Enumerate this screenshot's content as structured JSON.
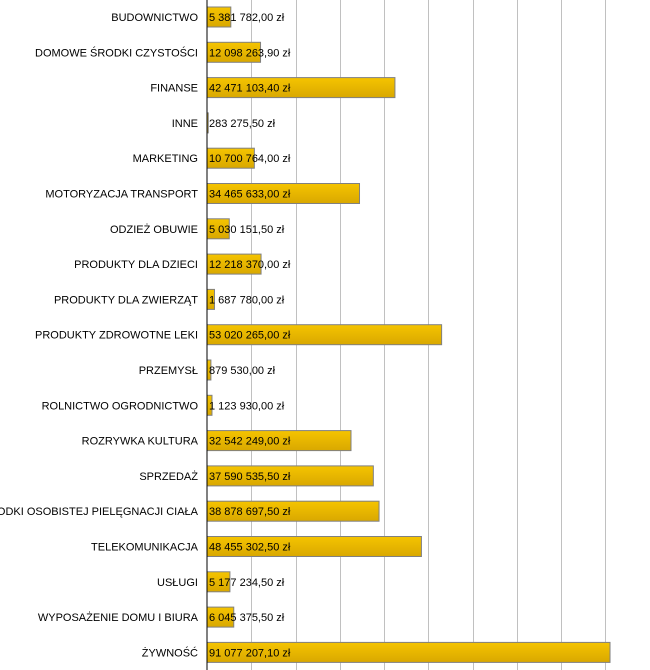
{
  "chart_data": {
    "type": "bar",
    "orientation": "horizontal",
    "title": "",
    "xlabel": "",
    "ylabel": "",
    "xlim": [
      0,
      100000000
    ],
    "grid_step": 10000000,
    "grid": true,
    "bar_color": "#f5c400",
    "bar_color_dark": "#d9a800",
    "bar_border": "#808080",
    "categories": [
      "BUDOWNICTWO",
      "DOMOWE ŚRODKI CZYSTOŚCI",
      "FINANSE",
      "INNE",
      "MARKETING",
      "MOTORYZACJA TRANSPORT",
      "ODZIEŻ OBUWIE",
      "PRODUKTY DLA DZIECI",
      "PRODUKTY DLA ZWIERZĄT",
      "PRODUKTY ZDROWOTNE LEKI",
      "PRZEMYSŁ",
      "ROLNICTWO OGRODNICTWO",
      "ROZRYWKA KULTURA",
      "SPRZEDAŻ",
      "ŚRODKI OSOBISTEJ PIELĘGNACJI CIAŁA",
      "TELEKOMUNIKACJA",
      "USŁUGI",
      "WYPOSAŻENIE DOMU I BIURA",
      "ŻYWNOŚĆ"
    ],
    "values": [
      5381782.0,
      12098263.9,
      42471103.4,
      283275.5,
      10700764.0,
      34465633.0,
      5030151.5,
      12218370.0,
      1687780.0,
      53020265.0,
      879530.0,
      1123930.0,
      32542249.0,
      37590535.5,
      38878697.5,
      48455302.5,
      5177234.5,
      6045375.5,
      91077207.1
    ],
    "value_labels": [
      "5 381 782,00 zł",
      "12 098 263,90 zł",
      "42 471 103,40 zł",
      "283 275,50 zł",
      "10 700 764,00 zł",
      "34 465 633,00 zł",
      "5 030 151,50 zł",
      "12 218 370,00 zł",
      "1 687 780,00 zł",
      "53 020 265,00 zł",
      "879 530,00 zł",
      "1 123 930,00 zł",
      "32 542 249,00 zł",
      "37 590 535,50 zł",
      "38 878 697,50 zł",
      "48 455 302,50 zł",
      "5 177 234,50 zł",
      "6 045 375,50 zł",
      "91 077 207,10 zł"
    ]
  }
}
